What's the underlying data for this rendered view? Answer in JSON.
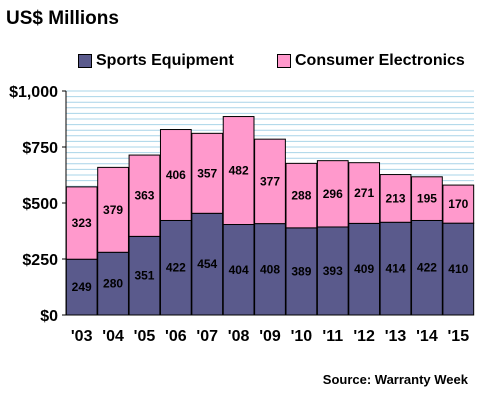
{
  "chart_data": {
    "type": "bar",
    "stacked": true,
    "title": "US$ Millions",
    "categories": [
      "'03",
      "'04",
      "'05",
      "'06",
      "'07",
      "'08",
      "'09",
      "'10",
      "'11",
      "'12",
      "'13",
      "'14",
      "'15"
    ],
    "series": [
      {
        "name": "Sports Equipment",
        "color": "#5a5a8c",
        "values": [
          249,
          280,
          351,
          422,
          454,
          404,
          408,
          389,
          393,
          409,
          414,
          422,
          410
        ]
      },
      {
        "name": "Consumer Electronics",
        "color": "#ff99cc",
        "values": [
          323,
          379,
          363,
          406,
          357,
          482,
          377,
          288,
          296,
          271,
          213,
          195,
          170
        ]
      }
    ],
    "ylim": [
      0,
      1000
    ],
    "yticks": [
      0,
      250,
      500,
      750,
      1000
    ],
    "ytick_labels": [
      "$0",
      "$250",
      "$500",
      "$750",
      "$1,000"
    ],
    "grid": true,
    "grid_color": "#a9d4e8",
    "legend_position": "top",
    "source": "Source: Warranty Week"
  }
}
